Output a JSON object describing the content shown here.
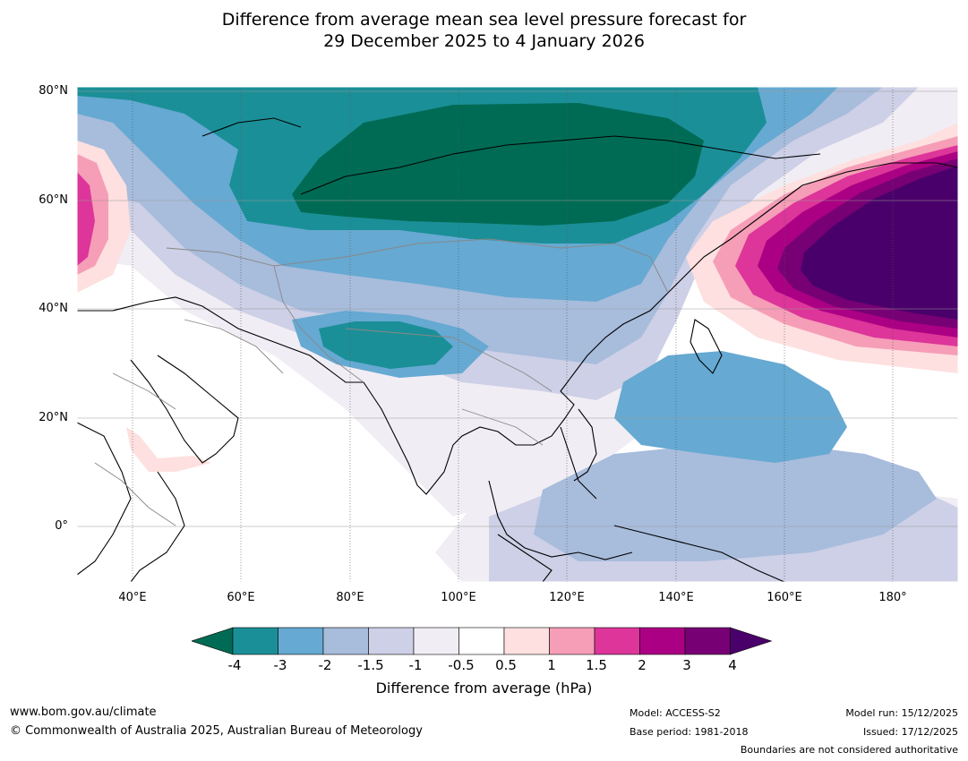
{
  "title": {
    "line1": "Difference from average mean sea level pressure forecast for",
    "line2": "29 December 2025 to 4 January 2026"
  },
  "map": {
    "lat_labels": [
      "80°N",
      "60°N",
      "40°N",
      "20°N",
      "0°"
    ],
    "lon_labels": [
      "40°E",
      "60°E",
      "80°E",
      "100°E",
      "120°E",
      "140°E",
      "160°E",
      "180°"
    ]
  },
  "colorbar": {
    "tick_labels": [
      "-4",
      "-3",
      "-2",
      "-1.5",
      "-1",
      "-0.5",
      "0.5",
      "1",
      "1.5",
      "2",
      "3",
      "4"
    ],
    "colors": [
      "#006b54",
      "#1b8f97",
      "#66a9d2",
      "#a8bcdc",
      "#cdd0e6",
      "#f1edf4",
      "#ffffff",
      "#fde0df",
      "#f69db7",
      "#dd3599",
      "#ab0083",
      "#770074",
      "#4a006a"
    ],
    "label": "Difference from average (hPa)"
  },
  "footer": {
    "website": "www.bom.gov.au/climate",
    "copyright": "© Commonwealth of Australia 2025, Australian Bureau of Meteorology",
    "model": "Model: ACCESS-S2",
    "base_period": "Base period: 1981-2018",
    "model_run": "Model run: 15/12/2025",
    "issued": "Issued: 17/12/2025",
    "disclaimer": "Boundaries are not considered authoritative"
  }
}
